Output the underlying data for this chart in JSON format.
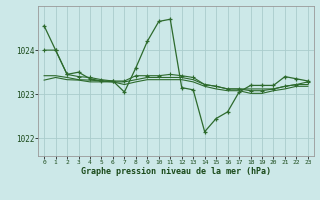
{
  "bg_color": "#cce8e8",
  "grid_color": "#aacccc",
  "line_color": "#2d6a2d",
  "xlabel": "Graphe pression niveau de la mer (hPa)",
  "xlabel_color": "#1a4a1a",
  "ylabel_ticks": [
    1022,
    1023,
    1024
  ],
  "xlim": [
    -0.5,
    23.5
  ],
  "ylim": [
    1021.6,
    1025.0
  ],
  "series": {
    "main": [
      1024.55,
      1024.0,
      1023.45,
      1023.5,
      1023.35,
      1023.3,
      1023.3,
      1023.05,
      1023.6,
      1024.2,
      1024.65,
      1024.7,
      1023.15,
      1023.1,
      1022.15,
      1022.45,
      1022.6,
      1023.05,
      1023.2,
      1023.2,
      1023.2,
      1023.4,
      1023.35,
      1023.3
    ],
    "line2": [
      1024.0,
      1024.0,
      1023.45,
      1023.4,
      1023.38,
      1023.33,
      1023.3,
      1023.3,
      1023.42,
      1023.42,
      1023.42,
      1023.45,
      1023.42,
      1023.38,
      1023.22,
      1023.18,
      1023.12,
      1023.12,
      1023.08,
      1023.08,
      1023.12,
      1023.18,
      1023.22,
      1023.28
    ],
    "line3": [
      1023.42,
      1023.42,
      1023.38,
      1023.33,
      1023.32,
      1023.3,
      1023.28,
      1023.28,
      1023.33,
      1023.38,
      1023.38,
      1023.38,
      1023.38,
      1023.33,
      1023.22,
      1023.18,
      1023.12,
      1023.12,
      1023.12,
      1023.12,
      1023.12,
      1023.18,
      1023.22,
      1023.22
    ],
    "line4": [
      1023.32,
      1023.38,
      1023.33,
      1023.32,
      1023.28,
      1023.28,
      1023.28,
      1023.22,
      1023.28,
      1023.33,
      1023.33,
      1023.33,
      1023.33,
      1023.28,
      1023.18,
      1023.12,
      1023.08,
      1023.08,
      1023.02,
      1023.02,
      1023.08,
      1023.12,
      1023.18,
      1023.18
    ]
  },
  "xtick_labels": [
    "0",
    "1",
    "2",
    "3",
    "4",
    "5",
    "6",
    "7",
    "8",
    "9",
    "10",
    "11",
    "12",
    "13",
    "14",
    "15",
    "16",
    "17",
    "18",
    "19",
    "20",
    "21",
    "22",
    "23"
  ]
}
